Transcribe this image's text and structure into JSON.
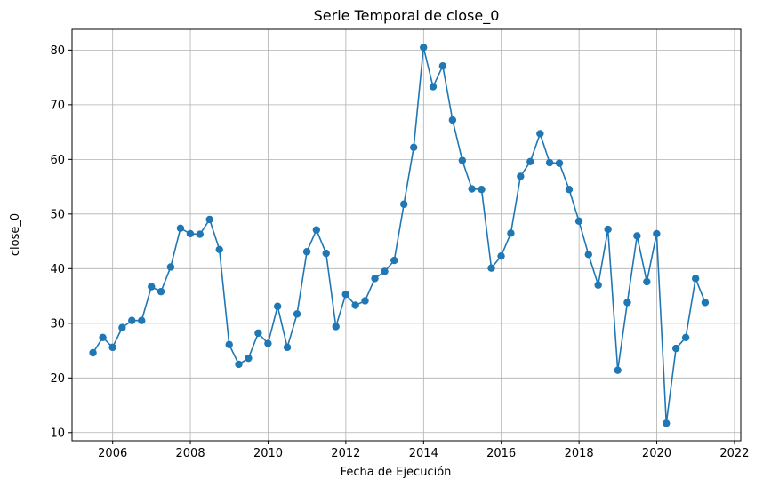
{
  "chart_data": {
    "type": "line",
    "title": "Serie Temporal de close_0",
    "xlabel": "Fecha de Ejecución",
    "ylabel": "close_0",
    "grid": true,
    "xlim": [
      "2004-12-15",
      "2022-03-01"
    ],
    "ylim": [
      8.5,
      83.8
    ],
    "x_ticks": [
      "2006",
      "2008",
      "2010",
      "2012",
      "2014",
      "2016",
      "2018",
      "2020",
      "2022"
    ],
    "y_ticks": [
      "10",
      "20",
      "30",
      "40",
      "50",
      "60",
      "70",
      "80"
    ],
    "colors": {
      "series": "#1f77b4",
      "grid": "#b0b0b0",
      "frame": "#000000"
    },
    "series": [
      {
        "marker": "circle",
        "x": [
          "2005-06-30",
          "2005-09-30",
          "2005-12-31",
          "2006-03-31",
          "2006-06-30",
          "2006-09-30",
          "2006-12-31",
          "2007-03-31",
          "2007-06-30",
          "2007-09-30",
          "2007-12-31",
          "2008-03-31",
          "2008-06-30",
          "2008-09-30",
          "2008-12-31",
          "2009-03-31",
          "2009-06-30",
          "2009-09-30",
          "2009-12-31",
          "2010-03-31",
          "2010-06-30",
          "2010-09-30",
          "2010-12-31",
          "2011-03-31",
          "2011-06-30",
          "2011-09-30",
          "2011-12-31",
          "2012-03-31",
          "2012-06-30",
          "2012-09-30",
          "2012-12-31",
          "2013-03-31",
          "2013-06-30",
          "2013-09-30",
          "2013-12-31",
          "2014-03-31",
          "2014-06-30",
          "2014-09-30",
          "2014-12-31",
          "2015-03-31",
          "2015-06-30",
          "2015-09-30",
          "2015-12-31",
          "2016-03-31",
          "2016-06-30",
          "2016-09-30",
          "2016-12-31",
          "2017-03-31",
          "2017-06-30",
          "2017-09-30",
          "2017-12-31",
          "2018-03-31",
          "2018-06-30",
          "2018-09-30",
          "2018-12-31",
          "2019-03-31",
          "2019-06-30",
          "2019-09-30",
          "2019-12-31",
          "2020-03-31",
          "2020-06-30",
          "2020-09-30",
          "2020-12-31",
          "2021-03-31"
        ],
        "y": [
          24.6,
          27.4,
          25.6,
          29.2,
          30.5,
          30.5,
          36.7,
          35.8,
          40.3,
          47.4,
          46.4,
          46.3,
          49.0,
          43.5,
          26.1,
          22.5,
          23.6,
          28.2,
          26.3,
          33.1,
          25.6,
          31.7,
          43.1,
          47.1,
          42.8,
          29.4,
          35.3,
          33.3,
          34.1,
          38.2,
          39.5,
          41.5,
          51.8,
          62.2,
          80.5,
          73.3,
          77.1,
          67.2,
          59.8,
          54.6,
          54.5,
          40.1,
          42.3,
          46.5,
          56.9,
          59.6,
          64.7,
          59.4,
          59.3,
          54.5,
          48.7,
          42.6,
          37.0,
          47.2,
          21.4,
          33.8,
          46.0,
          37.6,
          46.4,
          11.7,
          25.4,
          27.4,
          38.2,
          33.8
        ]
      }
    ]
  }
}
